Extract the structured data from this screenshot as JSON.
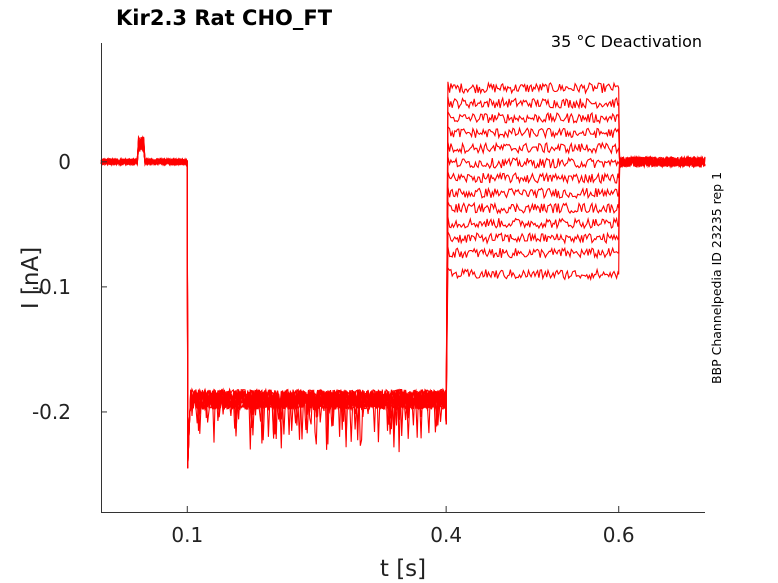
{
  "chart_data": {
    "type": "line",
    "title": "Kir2.3  Rat  CHO_FT",
    "subtitle": "35 °C  Deactivation",
    "side_label": "BBP Channelpedia ID 23235 rep 1",
    "xlabel": "t [s]",
    "ylabel": "I [nA]",
    "xlim": [
      0.0,
      0.7
    ],
    "ylim": [
      -0.28,
      0.095
    ],
    "xticks": [
      0.1,
      0.4,
      0.6
    ],
    "xtick_labels": [
      "0.1",
      "0.4",
      "0.6"
    ],
    "yticks": [
      0,
      -0.1,
      -0.2
    ],
    "ytick_labels": [
      "0",
      "-0.1",
      "-0.2"
    ],
    "grid": false,
    "line_color": "#ff0000",
    "protocol": {
      "baseline_nA": 0.0,
      "artifact_window_s": [
        0.043,
        0.05
      ],
      "artifact_peak_nA": 0.02,
      "hyperpolarizing_step_s": [
        0.1,
        0.4
      ],
      "hyperpolarizing_level_nA": -0.19,
      "onset_spike_nA": -0.245,
      "test_step_s": [
        0.4,
        0.6
      ],
      "end_s": 0.7
    },
    "series": [
      {
        "test_level_nA": 0.059
      },
      {
        "test_level_nA": 0.047
      },
      {
        "test_level_nA": 0.035
      },
      {
        "test_level_nA": 0.023
      },
      {
        "test_level_nA": 0.011
      },
      {
        "test_level_nA": -0.001
      },
      {
        "test_level_nA": -0.013
      },
      {
        "test_level_nA": -0.025
      },
      {
        "test_level_nA": -0.037
      },
      {
        "test_level_nA": -0.049
      },
      {
        "test_level_nA": -0.061
      },
      {
        "test_level_nA": -0.073
      },
      {
        "test_level_nA": -0.09
      }
    ]
  }
}
